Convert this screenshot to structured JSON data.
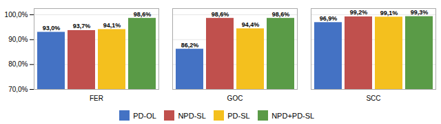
{
  "chart_data": {
    "type": "bar",
    "categories": [
      "FER",
      "GOC",
      "SCC"
    ],
    "series": [
      {
        "name": "PD-OL",
        "color": "#4472C4",
        "values": [
          93.0,
          86.2,
          96.9
        ],
        "value_labels": [
          "93,0%",
          "86,2%",
          "96,9%"
        ]
      },
      {
        "name": "NPD-SL",
        "color": "#C0504D",
        "values": [
          93.7,
          98.6,
          99.2
        ],
        "value_labels": [
          "93,7%",
          "98,6%",
          "99,2%"
        ]
      },
      {
        "name": "PD-SL",
        "color": "#F4C01E",
        "values": [
          94.1,
          94.4,
          99.1
        ],
        "value_labels": [
          "94,1%",
          "94,4%",
          "99,1%"
        ]
      },
      {
        "name": "NPD+PD-SL",
        "color": "#5A9B47",
        "values": [
          98.6,
          98.6,
          99.3
        ],
        "value_labels": [
          "98,6%",
          "98,6%",
          "99,3%"
        ]
      }
    ],
    "ylim": [
      70.0,
      102.5
    ],
    "yticks": [
      {
        "value": 70.0,
        "label": "70,0%"
      },
      {
        "value": 80.0,
        "label": "80,0%"
      },
      {
        "value": 90.0,
        "label": "90,0%"
      },
      {
        "value": 100.0,
        "label": "100,0%"
      }
    ],
    "grid": true,
    "data_labels": true,
    "legend": "bottom"
  }
}
